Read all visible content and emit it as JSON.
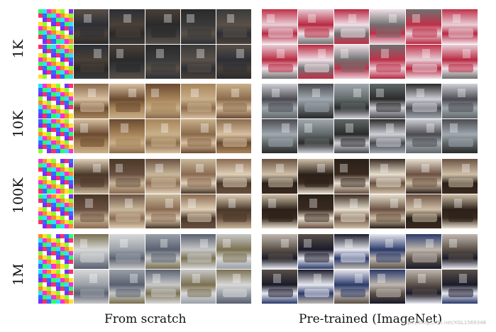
{
  "row_labels": [
    "1K",
    "10K",
    "100K",
    "1M"
  ],
  "column_captions": {
    "left": "From scratch",
    "right": "Pre-trained (ImageNet)"
  },
  "watermark": "https://blog.csdn.net/XGL1569348",
  "panels": {
    "left": {
      "rows": [
        {
          "label": "1K",
          "first_tile": "noise",
          "tones": [
            "#3a3a3a",
            "#5a5048",
            "#2d2f36",
            "#4a4038",
            "#2a2a2a"
          ]
        },
        {
          "label": "10K",
          "first_tile": "noise",
          "tones": [
            "#a8855a",
            "#c9b08a",
            "#8a6a4a",
            "#d8c0a0",
            "#6a4a30"
          ]
        },
        {
          "label": "100K",
          "first_tile": "noise",
          "tones": [
            "#6a5040",
            "#c8b89a",
            "#8a6a50",
            "#e0d0b8",
            "#4a3828"
          ]
        },
        {
          "label": "1M",
          "first_tile": "noise",
          "tones": [
            "#d8d8d8",
            "#9aa0a8",
            "#5a6070",
            "#c8c8c8",
            "#7a7050"
          ]
        }
      ]
    },
    "right": {
      "rows": [
        {
          "label": "1K",
          "tones": [
            "#c03048",
            "#e8d0d8",
            "#b82840",
            "#f0e0e8",
            "#707070"
          ]
        },
        {
          "label": "10K",
          "tones": [
            "#2a2a2a",
            "#d0d0d8",
            "#4a4a50",
            "#a0a8b0",
            "#606868"
          ]
        },
        {
          "label": "100K",
          "tones": [
            "#3a2a20",
            "#e8e0d0",
            "#6a5040",
            "#d0c0a8",
            "#2a2018"
          ]
        },
        {
          "label": "1M",
          "tones": [
            "#1a1a2a",
            "#e8e8f0",
            "#2a3a6a",
            "#c0b8b0",
            "#5a5048"
          ]
        }
      ]
    }
  }
}
